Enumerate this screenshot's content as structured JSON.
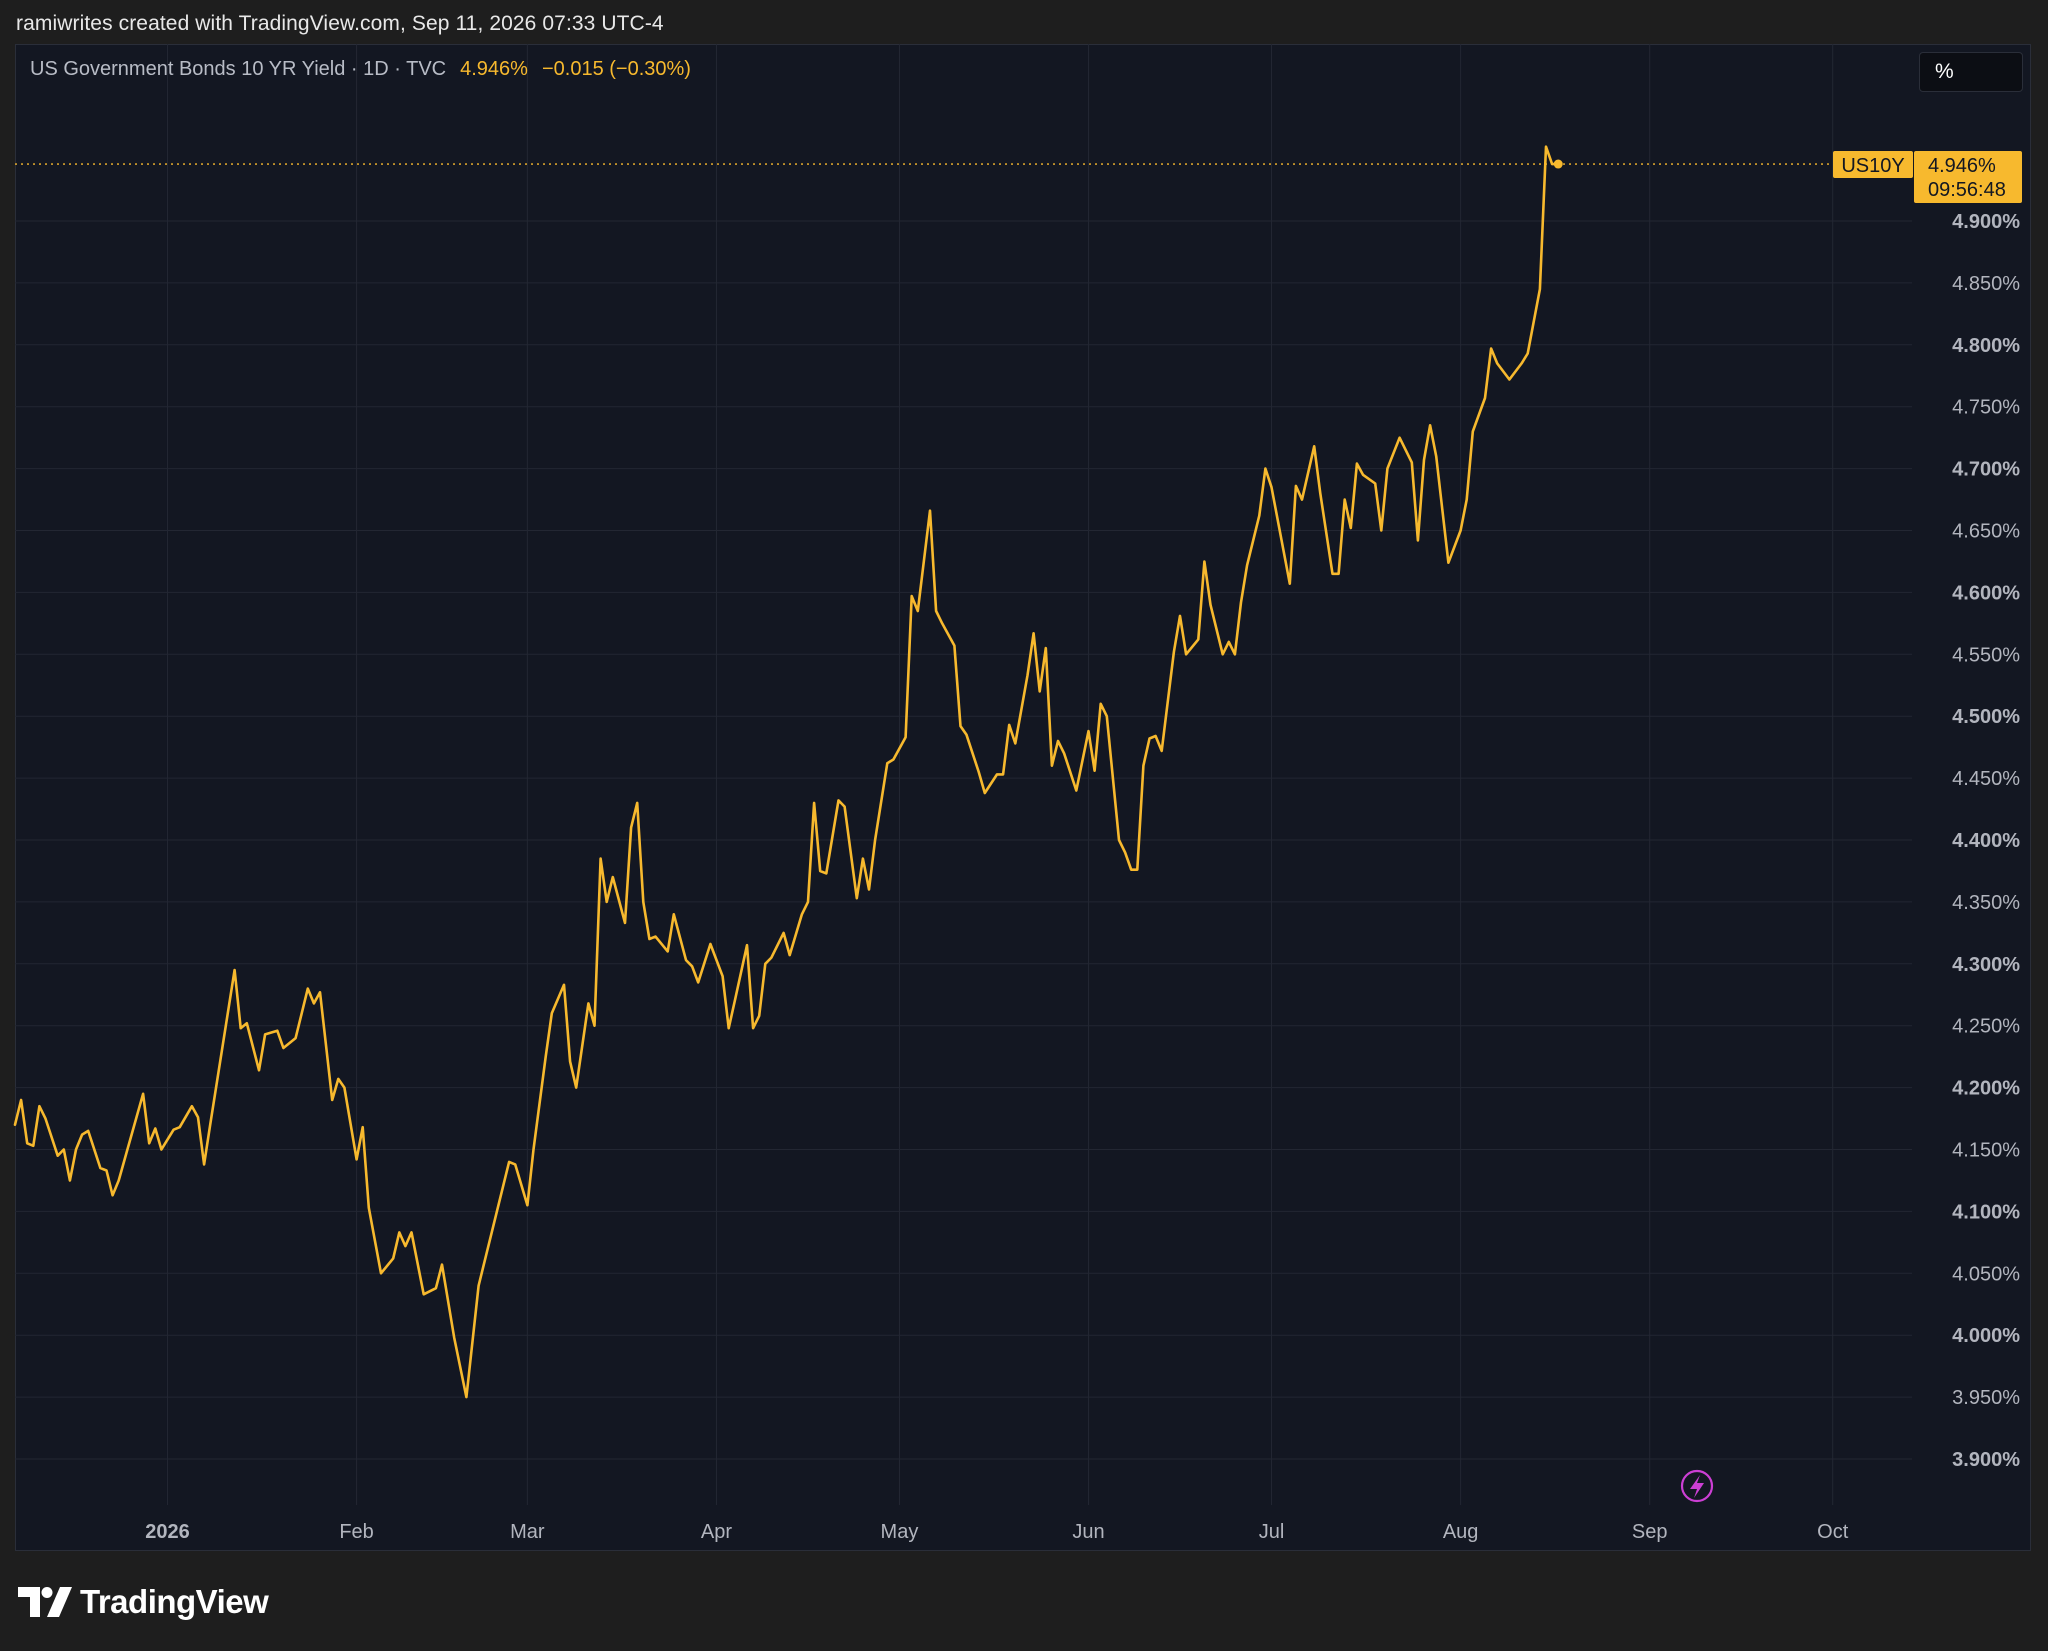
{
  "header": {
    "caption": "ramiwrites created with TradingView.com, Sep 11, 2026 07:33 UTC-4"
  },
  "legend": {
    "title": "US Government Bonds 10 YR Yield · 1D · TVC",
    "value": "4.946%",
    "change": "−0.015 (−0.30%)"
  },
  "unit_button": {
    "label": "%"
  },
  "price_tag": {
    "symbol": "US10Y",
    "value": "4.946%",
    "countdown": "09:56:48"
  },
  "brand": {
    "name": "TradingView"
  },
  "colors": {
    "line": "#f7b92e",
    "background": "#131722",
    "grid": "#232733",
    "axis_text": "#b2b5be",
    "event_icon": "#cc3fd4"
  },
  "chart_data": {
    "type": "line",
    "title": "US Government Bonds 10 YR Yield · 1D · TVC",
    "xlabel": "",
    "ylabel": "",
    "ylim": [
      3.87,
      4.97
    ],
    "grid": true,
    "y_ticks": [
      {
        "value": 4.9,
        "label": "4.900%"
      },
      {
        "value": 4.85,
        "label": "4.850%"
      },
      {
        "value": 4.8,
        "label": "4.800%"
      },
      {
        "value": 4.75,
        "label": "4.750%"
      },
      {
        "value": 4.7,
        "label": "4.700%"
      },
      {
        "value": 4.65,
        "label": "4.650%"
      },
      {
        "value": 4.6,
        "label": "4.600%"
      },
      {
        "value": 4.55,
        "label": "4.550%"
      },
      {
        "value": 4.5,
        "label": "4.500%"
      },
      {
        "value": 4.45,
        "label": "4.450%"
      },
      {
        "value": 4.4,
        "label": "4.400%"
      },
      {
        "value": 4.35,
        "label": "4.350%"
      },
      {
        "value": 4.3,
        "label": "4.300%"
      },
      {
        "value": 4.25,
        "label": "4.250%"
      },
      {
        "value": 4.2,
        "label": "4.200%"
      },
      {
        "value": 4.15,
        "label": "4.150%"
      },
      {
        "value": 4.1,
        "label": "4.100%"
      },
      {
        "value": 4.05,
        "label": "4.050%"
      },
      {
        "value": 4.0,
        "label": "4.000%"
      },
      {
        "value": 3.95,
        "label": "3.950%"
      },
      {
        "value": 3.9,
        "label": "3.900%"
      }
    ],
    "x_ticks": [
      {
        "date": "2026-01-01",
        "label": "2026"
      },
      {
        "date": "2026-02-01",
        "label": "Feb"
      },
      {
        "date": "2026-03-01",
        "label": "Mar"
      },
      {
        "date": "2026-04-01",
        "label": "Apr"
      },
      {
        "date": "2026-05-01",
        "label": "May"
      },
      {
        "date": "2026-06-01",
        "label": "Jun"
      },
      {
        "date": "2026-07-01",
        "label": "Jul"
      },
      {
        "date": "2026-08-01",
        "label": "Aug"
      },
      {
        "date": "2026-09-01",
        "label": "Sep"
      },
      {
        "date": "2026-10-01",
        "label": "Oct"
      }
    ],
    "xlim": [
      "2025-12-07",
      "2026-10-14"
    ],
    "last_value": 4.946,
    "series": [
      {
        "values": [
          {
            "x": "2025-12-07",
            "y": 4.17
          },
          {
            "x": "2025-12-08",
            "y": 4.19
          },
          {
            "x": "2025-12-09",
            "y": 4.155
          },
          {
            "x": "2025-12-10",
            "y": 4.153
          },
          {
            "x": "2025-12-11",
            "y": 4.185
          },
          {
            "x": "2025-12-12",
            "y": 4.175
          },
          {
            "x": "2025-12-14",
            "y": 4.145
          },
          {
            "x": "2025-12-15",
            "y": 4.15
          },
          {
            "x": "2025-12-16",
            "y": 4.125
          },
          {
            "x": "2025-12-17",
            "y": 4.15
          },
          {
            "x": "2025-12-18",
            "y": 4.162
          },
          {
            "x": "2025-12-19",
            "y": 4.165
          },
          {
            "x": "2025-12-21",
            "y": 4.135
          },
          {
            "x": "2025-12-22",
            "y": 4.133
          },
          {
            "x": "2025-12-23",
            "y": 4.113
          },
          {
            "x": "2025-12-24",
            "y": 4.125
          },
          {
            "x": "2025-12-26",
            "y": 4.16
          },
          {
            "x": "2025-12-28",
            "y": 4.195
          },
          {
            "x": "2025-12-29",
            "y": 4.155
          },
          {
            "x": "2025-12-30",
            "y": 4.167
          },
          {
            "x": "2025-12-31",
            "y": 4.15
          },
          {
            "x": "2026-01-02",
            "y": 4.166
          },
          {
            "x": "2026-01-03",
            "y": 4.168
          },
          {
            "x": "2026-01-05",
            "y": 4.185
          },
          {
            "x": "2026-01-06",
            "y": 4.176
          },
          {
            "x": "2026-01-07",
            "y": 4.138
          },
          {
            "x": "2026-01-08",
            "y": 4.17
          },
          {
            "x": "2026-01-12",
            "y": 4.295
          },
          {
            "x": "2026-01-13",
            "y": 4.248
          },
          {
            "x": "2026-01-14",
            "y": 4.252
          },
          {
            "x": "2026-01-16",
            "y": 4.214
          },
          {
            "x": "2026-01-17",
            "y": 4.243
          },
          {
            "x": "2026-01-19",
            "y": 4.246
          },
          {
            "x": "2026-01-20",
            "y": 4.232
          },
          {
            "x": "2026-01-22",
            "y": 4.24
          },
          {
            "x": "2026-01-24",
            "y": 4.28
          },
          {
            "x": "2026-01-25",
            "y": 4.268
          },
          {
            "x": "2026-01-26",
            "y": 4.277
          },
          {
            "x": "2026-01-28",
            "y": 4.19
          },
          {
            "x": "2026-01-29",
            "y": 4.207
          },
          {
            "x": "2026-01-30",
            "y": 4.2
          },
          {
            "x": "2026-02-01",
            "y": 4.142
          },
          {
            "x": "2026-02-02",
            "y": 4.168
          },
          {
            "x": "2026-02-03",
            "y": 4.103
          },
          {
            "x": "2026-02-05",
            "y": 4.05
          },
          {
            "x": "2026-02-07",
            "y": 4.062
          },
          {
            "x": "2026-02-08",
            "y": 4.083
          },
          {
            "x": "2026-02-09",
            "y": 4.072
          },
          {
            "x": "2026-02-10",
            "y": 4.083
          },
          {
            "x": "2026-02-12",
            "y": 4.033
          },
          {
            "x": "2026-02-14",
            "y": 4.038
          },
          {
            "x": "2026-02-15",
            "y": 4.057
          },
          {
            "x": "2026-02-17",
            "y": 3.998
          },
          {
            "x": "2026-02-19",
            "y": 3.95
          },
          {
            "x": "2026-02-21",
            "y": 4.04
          },
          {
            "x": "2026-02-24",
            "y": 4.1
          },
          {
            "x": "2026-02-26",
            "y": 4.14
          },
          {
            "x": "2026-02-27",
            "y": 4.138
          },
          {
            "x": "2026-03-01",
            "y": 4.105
          },
          {
            "x": "2026-03-02",
            "y": 4.15
          },
          {
            "x": "2026-03-04",
            "y": 4.225
          },
          {
            "x": "2026-03-05",
            "y": 4.26
          },
          {
            "x": "2026-03-07",
            "y": 4.283
          },
          {
            "x": "2026-03-08",
            "y": 4.221
          },
          {
            "x": "2026-03-09",
            "y": 4.2
          },
          {
            "x": "2026-03-11",
            "y": 4.268
          },
          {
            "x": "2026-03-12",
            "y": 4.25
          },
          {
            "x": "2026-03-13",
            "y": 4.385
          },
          {
            "x": "2026-03-14",
            "y": 4.35
          },
          {
            "x": "2026-03-15",
            "y": 4.37
          },
          {
            "x": "2026-03-17",
            "y": 4.333
          },
          {
            "x": "2026-03-18",
            "y": 4.41
          },
          {
            "x": "2026-03-19",
            "y": 4.43
          },
          {
            "x": "2026-03-20",
            "y": 4.35
          },
          {
            "x": "2026-03-21",
            "y": 4.32
          },
          {
            "x": "2026-03-22",
            "y": 4.322
          },
          {
            "x": "2026-03-24",
            "y": 4.31
          },
          {
            "x": "2026-03-25",
            "y": 4.34
          },
          {
            "x": "2026-03-27",
            "y": 4.303
          },
          {
            "x": "2026-03-28",
            "y": 4.298
          },
          {
            "x": "2026-03-29",
            "y": 4.285
          },
          {
            "x": "2026-03-31",
            "y": 4.316
          },
          {
            "x": "2026-04-02",
            "y": 4.29
          },
          {
            "x": "2026-04-03",
            "y": 4.248
          },
          {
            "x": "2026-04-04",
            "y": 4.27
          },
          {
            "x": "2026-04-06",
            "y": 4.315
          },
          {
            "x": "2026-04-07",
            "y": 4.248
          },
          {
            "x": "2026-04-08",
            "y": 4.258
          },
          {
            "x": "2026-04-09",
            "y": 4.3
          },
          {
            "x": "2026-04-10",
            "y": 4.305
          },
          {
            "x": "2026-04-12",
            "y": 4.325
          },
          {
            "x": "2026-04-13",
            "y": 4.307
          },
          {
            "x": "2026-04-15",
            "y": 4.34
          },
          {
            "x": "2026-04-16",
            "y": 4.35
          },
          {
            "x": "2026-04-17",
            "y": 4.43
          },
          {
            "x": "2026-04-18",
            "y": 4.375
          },
          {
            "x": "2026-04-19",
            "y": 4.373
          },
          {
            "x": "2026-04-21",
            "y": 4.432
          },
          {
            "x": "2026-04-22",
            "y": 4.427
          },
          {
            "x": "2026-04-24",
            "y": 4.353
          },
          {
            "x": "2026-04-25",
            "y": 4.385
          },
          {
            "x": "2026-04-26",
            "y": 4.36
          },
          {
            "x": "2026-04-27",
            "y": 4.4
          },
          {
            "x": "2026-04-29",
            "y": 4.462
          },
          {
            "x": "2026-04-30",
            "y": 4.465
          },
          {
            "x": "2026-05-02",
            "y": 4.483
          },
          {
            "x": "2026-05-03",
            "y": 4.597
          },
          {
            "x": "2026-05-04",
            "y": 4.585
          },
          {
            "x": "2026-05-06",
            "y": 4.666
          },
          {
            "x": "2026-05-07",
            "y": 4.585
          },
          {
            "x": "2026-05-08",
            "y": 4.575
          },
          {
            "x": "2026-05-10",
            "y": 4.557
          },
          {
            "x": "2026-05-11",
            "y": 4.492
          },
          {
            "x": "2026-05-12",
            "y": 4.485
          },
          {
            "x": "2026-05-14",
            "y": 4.455
          },
          {
            "x": "2026-05-15",
            "y": 4.438
          },
          {
            "x": "2026-05-17",
            "y": 4.453
          },
          {
            "x": "2026-05-18",
            "y": 4.453
          },
          {
            "x": "2026-05-19",
            "y": 4.493
          },
          {
            "x": "2026-05-20",
            "y": 4.478
          },
          {
            "x": "2026-05-22",
            "y": 4.533
          },
          {
            "x": "2026-05-23",
            "y": 4.567
          },
          {
            "x": "2026-05-24",
            "y": 4.52
          },
          {
            "x": "2026-05-25",
            "y": 4.555
          },
          {
            "x": "2026-05-26",
            "y": 4.46
          },
          {
            "x": "2026-05-27",
            "y": 4.48
          },
          {
            "x": "2026-05-28",
            "y": 4.47
          },
          {
            "x": "2026-05-30",
            "y": 4.44
          },
          {
            "x": "2026-06-01",
            "y": 4.488
          },
          {
            "x": "2026-06-02",
            "y": 4.456
          },
          {
            "x": "2026-06-03",
            "y": 4.51
          },
          {
            "x": "2026-06-04",
            "y": 4.5
          },
          {
            "x": "2026-06-06",
            "y": 4.4
          },
          {
            "x": "2026-06-07",
            "y": 4.39
          },
          {
            "x": "2026-06-08",
            "y": 4.376
          },
          {
            "x": "2026-06-09",
            "y": 4.376
          },
          {
            "x": "2026-06-10",
            "y": 4.46
          },
          {
            "x": "2026-06-11",
            "y": 4.482
          },
          {
            "x": "2026-06-12",
            "y": 4.484
          },
          {
            "x": "2026-06-13",
            "y": 4.472
          },
          {
            "x": "2026-06-15",
            "y": 4.552
          },
          {
            "x": "2026-06-16",
            "y": 4.581
          },
          {
            "x": "2026-06-17",
            "y": 4.55
          },
          {
            "x": "2026-06-19",
            "y": 4.562
          },
          {
            "x": "2026-06-20",
            "y": 4.625
          },
          {
            "x": "2026-06-21",
            "y": 4.59
          },
          {
            "x": "2026-06-23",
            "y": 4.55
          },
          {
            "x": "2026-06-24",
            "y": 4.56
          },
          {
            "x": "2026-06-25",
            "y": 4.55
          },
          {
            "x": "2026-06-26",
            "y": 4.592
          },
          {
            "x": "2026-06-27",
            "y": 4.622
          },
          {
            "x": "2026-06-29",
            "y": 4.662
          },
          {
            "x": "2026-06-30",
            "y": 4.7
          },
          {
            "x": "2026-07-01",
            "y": 4.685
          },
          {
            "x": "2026-07-04",
            "y": 4.607
          },
          {
            "x": "2026-07-05",
            "y": 4.686
          },
          {
            "x": "2026-07-06",
            "y": 4.675
          },
          {
            "x": "2026-07-08",
            "y": 4.718
          },
          {
            "x": "2026-07-09",
            "y": 4.68
          },
          {
            "x": "2026-07-11",
            "y": 4.615
          },
          {
            "x": "2026-07-12",
            "y": 4.615
          },
          {
            "x": "2026-07-13",
            "y": 4.675
          },
          {
            "x": "2026-07-14",
            "y": 4.652
          },
          {
            "x": "2026-07-15",
            "y": 4.704
          },
          {
            "x": "2026-07-16",
            "y": 4.695
          },
          {
            "x": "2026-07-18",
            "y": 4.688
          },
          {
            "x": "2026-07-19",
            "y": 4.65
          },
          {
            "x": "2026-07-20",
            "y": 4.7
          },
          {
            "x": "2026-07-22",
            "y": 4.725
          },
          {
            "x": "2026-07-24",
            "y": 4.705
          },
          {
            "x": "2026-07-25",
            "y": 4.642
          },
          {
            "x": "2026-07-26",
            "y": 4.707
          },
          {
            "x": "2026-07-27",
            "y": 4.735
          },
          {
            "x": "2026-07-28",
            "y": 4.71
          },
          {
            "x": "2026-07-30",
            "y": 4.624
          },
          {
            "x": "2026-08-01",
            "y": 4.65
          },
          {
            "x": "2026-08-02",
            "y": 4.675
          },
          {
            "x": "2026-08-03",
            "y": 4.73
          },
          {
            "x": "2026-08-05",
            "y": 4.757
          },
          {
            "x": "2026-08-06",
            "y": 4.797
          },
          {
            "x": "2026-08-07",
            "y": 4.785
          },
          {
            "x": "2026-08-09",
            "y": 4.772
          },
          {
            "x": "2026-08-11",
            "y": 4.785
          },
          {
            "x": "2026-08-12",
            "y": 4.793
          },
          {
            "x": "2026-08-14",
            "y": 4.845
          },
          {
            "x": "2026-08-15",
            "y": 4.96
          },
          {
            "x": "2026-08-16",
            "y": 4.946
          },
          {
            "x": "2026-08-17",
            "y": 4.946
          }
        ]
      }
    ]
  }
}
